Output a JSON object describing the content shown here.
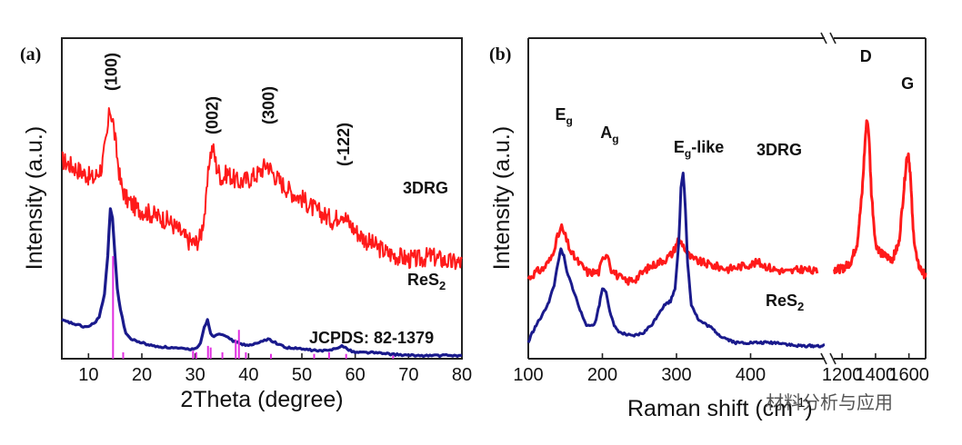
{
  "chart_data": [
    {
      "type": "line",
      "panel_label": "(a)",
      "xlabel": "2Theta (degree)",
      "ylabel": "Intensity (a.u.)",
      "xlim": [
        5,
        80
      ],
      "xticks": [
        10,
        20,
        30,
        40,
        50,
        60,
        70,
        80
      ],
      "series": [
        {
          "name": "3DRG",
          "color": "#ff1a1a",
          "x": [
            5,
            8,
            11,
            12.5,
            13.5,
            14,
            14.6,
            15.3,
            16,
            17,
            19,
            22,
            25,
            27,
            28.5,
            30,
            31,
            32,
            32.7,
            33.3,
            34,
            35,
            36,
            38,
            40,
            42,
            43.5,
            44.5,
            46,
            48,
            50,
            52,
            54,
            56,
            57.5,
            58.5,
            60,
            62,
            64,
            66,
            68,
            70,
            72,
            74,
            76,
            78,
            80
          ],
          "y": [
            0.62,
            0.59,
            0.56,
            0.6,
            0.7,
            0.78,
            0.74,
            0.64,
            0.55,
            0.5,
            0.47,
            0.45,
            0.43,
            0.4,
            0.37,
            0.36,
            0.38,
            0.48,
            0.63,
            0.66,
            0.6,
            0.56,
            0.58,
            0.55,
            0.56,
            0.58,
            0.61,
            0.58,
            0.55,
            0.52,
            0.5,
            0.47,
            0.45,
            0.43,
            0.46,
            0.43,
            0.4,
            0.37,
            0.35,
            0.33,
            0.32,
            0.31,
            0.31,
            0.32,
            0.31,
            0.3,
            0.3
          ]
        },
        {
          "name": "ReS2",
          "color": "#1a1a8c",
          "x": [
            5,
            7,
            9,
            10,
            11,
            12,
            13,
            13.6,
            14.1,
            14.5,
            14.9,
            15.4,
            16,
            17,
            18,
            20,
            22,
            25,
            28,
            30,
            31,
            31.7,
            32.3,
            32.9,
            33.5,
            34.5,
            35.5,
            36.5,
            38,
            40,
            42,
            43,
            44,
            45,
            47,
            50,
            53,
            55,
            56.5,
            57.5,
            58.5,
            60,
            63,
            66,
            70,
            74,
            78,
            80
          ],
          "y": [
            0.12,
            0.11,
            0.1,
            0.1,
            0.11,
            0.13,
            0.2,
            0.32,
            0.47,
            0.44,
            0.34,
            0.22,
            0.15,
            0.08,
            0.06,
            0.05,
            0.04,
            0.035,
            0.03,
            0.03,
            0.05,
            0.1,
            0.12,
            0.08,
            0.07,
            0.08,
            0.075,
            0.06,
            0.05,
            0.04,
            0.05,
            0.06,
            0.06,
            0.05,
            0.035,
            0.03,
            0.025,
            0.025,
            0.035,
            0.04,
            0.03,
            0.02,
            0.02,
            0.015,
            0.01,
            0.01,
            0.01,
            0.01
          ]
        },
        {
          "name": "JCPDS: 82-1379",
          "color": "#e12ee1",
          "type": "stick",
          "x": [
            14.6,
            16.5,
            29.6,
            30.2,
            32.4,
            32.9,
            35.1,
            37.6,
            38.2,
            39.5,
            44.2,
            52.3,
            55.1,
            58.3,
            67.1
          ],
          "y": [
            0.32,
            0.02,
            0.025,
            0.02,
            0.04,
            0.035,
            0.02,
            0.06,
            0.09,
            0.02,
            0.015,
            0.015,
            0.02,
            0.015,
            0.01
          ]
        }
      ],
      "annotations": [
        {
          "text": "(100)",
          "x": 14.3
        },
        {
          "text": "(002)",
          "x": 33.2
        },
        {
          "text": "(300)",
          "x": 43.8
        },
        {
          "text": "(-122)",
          "x": 57.8
        }
      ],
      "series_labels": {
        "top": "3DRG",
        "middle_main": "ReS",
        "middle_sub": "2",
        "reference": "JCPDS: 82-1379"
      }
    },
    {
      "type": "line",
      "panel_label": "(b)",
      "xlabel": "Raman shift (cm",
      "xlabel_sup": "-1",
      "xlabel_end": ")",
      "ylabel": "Intensity (a.u.)",
      "broken_axis": true,
      "segments": [
        {
          "xlim": [
            100,
            500
          ],
          "xticks": [
            100,
            200,
            300,
            400
          ]
        },
        {
          "xlim": [
            1150,
            1700
          ],
          "xticks": [
            1200,
            1400,
            1600
          ]
        }
      ],
      "series": [
        {
          "name": "3DRG",
          "color": "#ff1a1a",
          "x": [
            100,
            110,
            120,
            130,
            138,
            145,
            150,
            158,
            168,
            180,
            195,
            202,
            207,
            212,
            220,
            232,
            245,
            260,
            275,
            285,
            295,
            302,
            308,
            314,
            322,
            335,
            350,
            370,
            390,
            410,
            430,
            450,
            470,
            490
          ],
          "y": [
            0.25,
            0.27,
            0.28,
            0.31,
            0.37,
            0.41,
            0.38,
            0.33,
            0.3,
            0.27,
            0.27,
            0.32,
            0.33,
            0.28,
            0.26,
            0.24,
            0.25,
            0.28,
            0.3,
            0.31,
            0.33,
            0.37,
            0.36,
            0.33,
            0.31,
            0.3,
            0.29,
            0.28,
            0.29,
            0.3,
            0.28,
            0.27,
            0.28,
            0.27
          ]
        },
        {
          "name": "3DRG",
          "color": "#ff1a1a",
          "x": [
            1150,
            1200,
            1250,
            1290,
            1320,
            1340,
            1350,
            1360,
            1375,
            1400,
            1430,
            1460,
            1500,
            1540,
            1565,
            1585,
            1597,
            1608,
            1625,
            1650,
            1680,
            1700
          ],
          "y": [
            0.28,
            0.28,
            0.3,
            0.36,
            0.52,
            0.7,
            0.75,
            0.7,
            0.52,
            0.36,
            0.33,
            0.32,
            0.31,
            0.36,
            0.5,
            0.62,
            0.64,
            0.58,
            0.4,
            0.3,
            0.27,
            0.26
          ]
        },
        {
          "name": "ReS2",
          "color": "#1a1a8c",
          "x": [
            100,
            105,
            112,
            120,
            128,
            135,
            140,
            144,
            148,
            152,
            157,
            163,
            170,
            180,
            190,
            196,
            200,
            205,
            210,
            216,
            225,
            240,
            255,
            268,
            278,
            285,
            292,
            298,
            303,
            306,
            309,
            312,
            315,
            320,
            330,
            345,
            360,
            380,
            400,
            420,
            440,
            460,
            480,
            500
          ],
          "y": [
            0.05,
            0.08,
            0.11,
            0.14,
            0.18,
            0.23,
            0.3,
            0.34,
            0.32,
            0.27,
            0.24,
            0.2,
            0.15,
            0.1,
            0.11,
            0.17,
            0.22,
            0.21,
            0.15,
            0.1,
            0.08,
            0.07,
            0.08,
            0.11,
            0.15,
            0.17,
            0.18,
            0.22,
            0.36,
            0.53,
            0.58,
            0.47,
            0.3,
            0.17,
            0.12,
            0.1,
            0.07,
            0.05,
            0.05,
            0.05,
            0.05,
            0.04,
            0.04,
            0.04
          ]
        }
      ],
      "annotations": [
        {
          "text": "E",
          "sub": "g",
          "x": 146
        },
        {
          "text": "A",
          "sub": "g",
          "x": 207
        },
        {
          "text": "E",
          "sub": "g",
          "suffix": "-like",
          "x": 306
        },
        {
          "text": "D",
          "x": 1350
        },
        {
          "text": "G",
          "x": 1597
        }
      ],
      "series_labels": {
        "top": "3DRG",
        "bottom_main": "ReS",
        "bottom_sub": "2"
      }
    }
  ],
  "watermark": "材料分析与应用"
}
